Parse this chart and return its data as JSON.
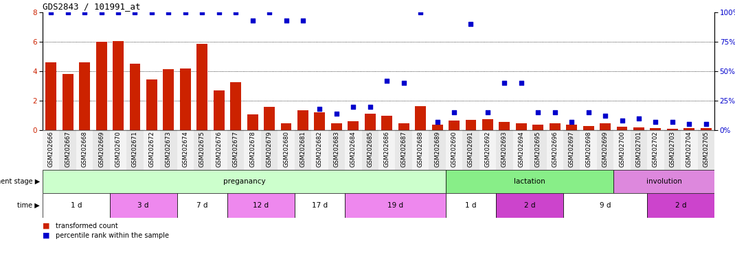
{
  "title": "GDS2843 / 101991_at",
  "categories": [
    "GSM202666",
    "GSM202667",
    "GSM202668",
    "GSM202669",
    "GSM202670",
    "GSM202671",
    "GSM202672",
    "GSM202673",
    "GSM202674",
    "GSM202675",
    "GSM202676",
    "GSM202677",
    "GSM202678",
    "GSM202679",
    "GSM202680",
    "GSM202681",
    "GSM202682",
    "GSM202683",
    "GSM202684",
    "GSM202685",
    "GSM202686",
    "GSM202687",
    "GSM202688",
    "GSM202689",
    "GSM202690",
    "GSM202691",
    "GSM202692",
    "GSM202693",
    "GSM202694",
    "GSM202695",
    "GSM202696",
    "GSM202697",
    "GSM202698",
    "GSM202699",
    "GSM202700",
    "GSM202701",
    "GSM202702",
    "GSM202703",
    "GSM202704",
    "GSM202705"
  ],
  "bar_values": [
    4.6,
    3.8,
    4.6,
    6.0,
    6.05,
    4.5,
    3.45,
    4.15,
    4.2,
    5.85,
    2.7,
    3.25,
    1.05,
    1.6,
    0.45,
    1.35,
    1.2,
    0.45,
    0.6,
    1.1,
    1.0,
    0.45,
    1.65,
    0.35,
    0.65,
    0.7,
    0.75,
    0.55,
    0.45,
    0.35,
    0.45,
    0.35,
    0.3,
    0.45,
    0.25,
    0.2,
    0.15,
    0.1,
    0.12,
    0.12
  ],
  "percentile_values": [
    100,
    100,
    100,
    100,
    100,
    100,
    100,
    100,
    100,
    100,
    100,
    100,
    93,
    100,
    93,
    93,
    18,
    14,
    20,
    20,
    42,
    40,
    100,
    7,
    15,
    90,
    15,
    40,
    40,
    15,
    15,
    7,
    15,
    12,
    8,
    10,
    7,
    7,
    5,
    5
  ],
  "ylim_left": [
    0,
    8
  ],
  "ylim_right": [
    0,
    100
  ],
  "bar_color": "#cc2200",
  "scatter_color": "#0000cc",
  "yticks_left": [
    0,
    2,
    4,
    6,
    8
  ],
  "yticks_right": [
    0,
    25,
    50,
    75,
    100
  ],
  "hgrid_values": [
    2,
    4,
    6
  ],
  "development_stages": [
    {
      "label": "preganancy",
      "start": 0,
      "end": 24,
      "color": "#ccffcc"
    },
    {
      "label": "lactation",
      "start": 24,
      "end": 34,
      "color": "#88ee88"
    },
    {
      "label": "involution",
      "start": 34,
      "end": 40,
      "color": "#dd88dd"
    }
  ],
  "time_periods": [
    {
      "label": "1 d",
      "start": 0,
      "end": 4,
      "color": "#ffffff"
    },
    {
      "label": "3 d",
      "start": 4,
      "end": 8,
      "color": "#ee88ee"
    },
    {
      "label": "7 d",
      "start": 8,
      "end": 11,
      "color": "#ffffff"
    },
    {
      "label": "12 d",
      "start": 11,
      "end": 15,
      "color": "#ee88ee"
    },
    {
      "label": "17 d",
      "start": 15,
      "end": 18,
      "color": "#ffffff"
    },
    {
      "label": "19 d",
      "start": 18,
      "end": 24,
      "color": "#ee88ee"
    },
    {
      "label": "1 d",
      "start": 24,
      "end": 27,
      "color": "#ffffff"
    },
    {
      "label": "2 d",
      "start": 27,
      "end": 31,
      "color": "#cc44cc"
    },
    {
      "label": "9 d",
      "start": 31,
      "end": 36,
      "color": "#ffffff"
    },
    {
      "label": "2 d",
      "start": 36,
      "end": 40,
      "color": "#cc44cc"
    }
  ],
  "background_color": "#ffffff"
}
